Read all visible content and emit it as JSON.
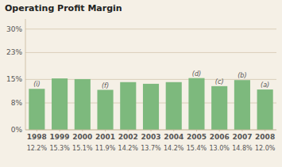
{
  "chart_data": {
    "type": "bar",
    "title": "Operating Profit Margin",
    "categories": [
      "1998",
      "1999",
      "2000",
      "2001",
      "2002",
      "2003",
      "2004",
      "2005",
      "2006",
      "2007",
      "2008"
    ],
    "values": [
      12.2,
      15.3,
      15.1,
      11.9,
      14.2,
      13.7,
      14.2,
      15.4,
      13.0,
      14.8,
      12.0
    ],
    "value_labels": [
      "12.2%",
      "15.3%",
      "15.1%",
      "11.9%",
      "14.2%",
      "13.7%",
      "14.2%",
      "15.4%",
      "13.0%",
      "14.8%",
      "12.0%"
    ],
    "data_labels": true,
    "annotations": [
      "(i)",
      null,
      null,
      "(f)",
      null,
      null,
      null,
      "(d)",
      "(c)",
      "(b)",
      "(a)"
    ],
    "color": "#7db97d",
    "ylim": [
      0,
      33
    ],
    "yticks": [
      {
        "value": 0,
        "label": "0%"
      },
      {
        "value": 8,
        "label": "8%"
      },
      {
        "value": 15,
        "label": "15%"
      },
      {
        "value": 23,
        "label": "23%"
      },
      {
        "value": 30,
        "label": "30%"
      }
    ],
    "grid": true
  }
}
